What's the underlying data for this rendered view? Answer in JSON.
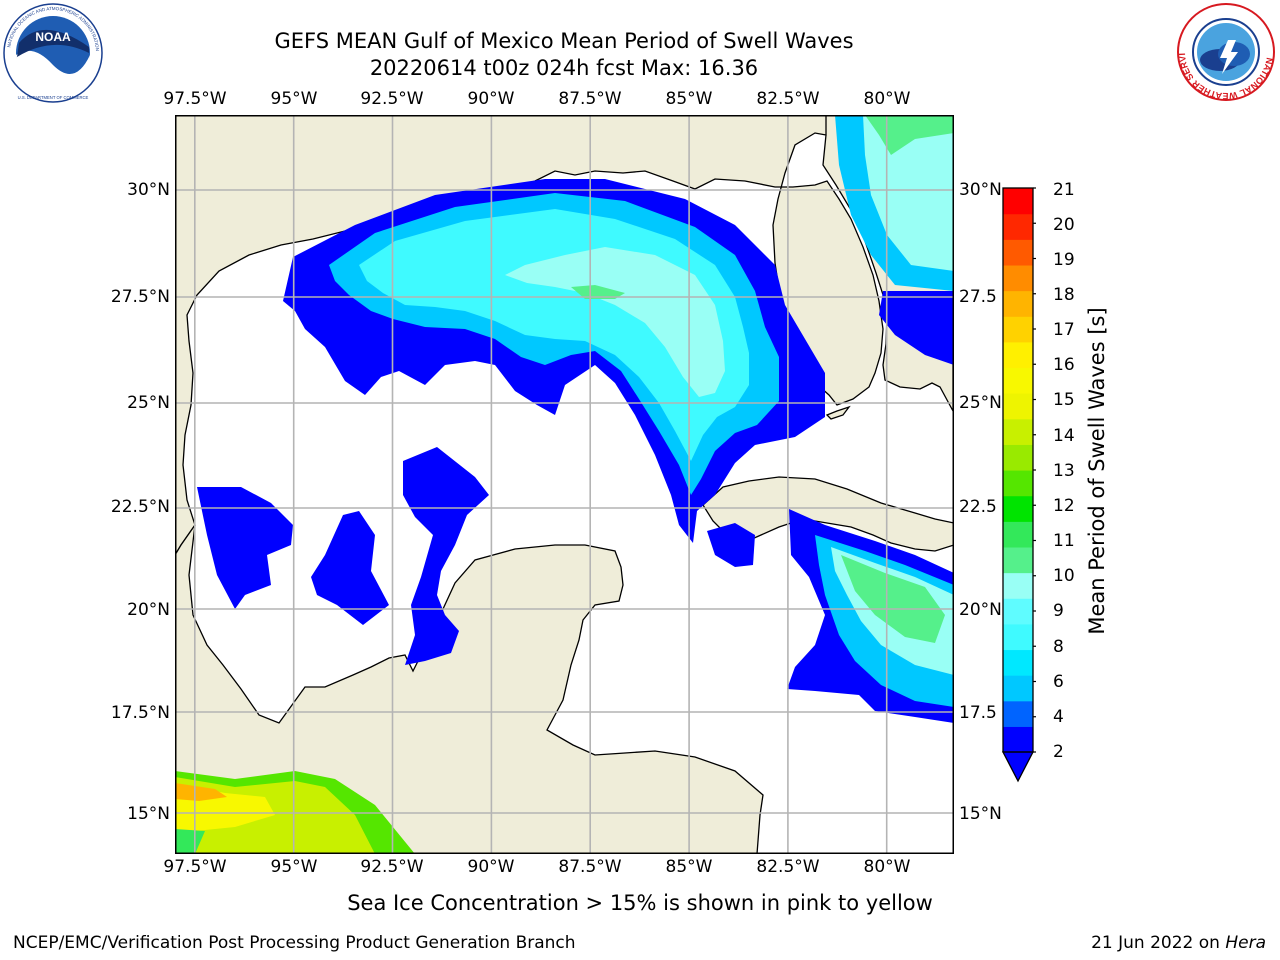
{
  "header": {
    "title_line1": "GEFS MEAN Gulf of Mexico Mean Period of Swell Waves",
    "title_line2": "20220614 t00z 024h fcst   Max: 16.36"
  },
  "logos": {
    "left": {
      "icon": "noaa-logo-icon",
      "ring_text": "NATIONAL OCEANIC AND ATMOSPHERIC ADMINISTRATION",
      "bottom_text": "U.S. DEPARTMENT OF COMMERCE",
      "center_text": "NOAA"
    },
    "right": {
      "icon": "nws-logo-icon",
      "ring_text": "NATIONAL WEATHER SERVICE"
    }
  },
  "map": {
    "lon_ticks": [
      "97.5°W",
      "95°W",
      "92.5°W",
      "90°W",
      "87.5°W",
      "85°W",
      "82.5°W",
      "80°W"
    ],
    "lat_ticks_left": [
      "30°N",
      "27.5°N",
      "25°N",
      "22.5°N",
      "20°N",
      "17.5°N",
      "15°N"
    ],
    "lat_ticks_right": [
      "30°N",
      "27.5",
      "25°N",
      "22.5",
      "20°N",
      "17.5",
      "15°N"
    ],
    "lon_range": [
      -98,
      -78.3
    ],
    "lat_range": [
      14,
      31.5
    ],
    "colors": {
      "land": "#efedd9",
      "ocean": "#ffffff",
      "grid": "#b4b4b4",
      "coast": "#000000"
    }
  },
  "colorbar": {
    "label": "Mean Period of Swell Waves [s]",
    "ticks": [
      "21",
      "20",
      "19",
      "18",
      "17",
      "16",
      "15",
      "14",
      "13",
      "12",
      "11",
      "10",
      "9",
      "8",
      "6",
      "4",
      "2"
    ],
    "colors": [
      "#0000ff",
      "#0064ff",
      "#00c8ff",
      "#00e8ff",
      "#3ffaff",
      "#5ffcff",
      "#99fff5",
      "#55f08b",
      "#33e85a",
      "#00e400",
      "#55e600",
      "#99ea00",
      "#c8f000",
      "#eef400",
      "#f8f800",
      "#fff000",
      "#ffd200",
      "#ffb400",
      "#ff8c00",
      "#ff5a00",
      "#ff2800",
      "#ff0000"
    ]
  },
  "annotation": "Sea Ice Concentration > 15% is shown in pink to yellow",
  "footer": {
    "left": "NCEP/EMC/Verification Post Processing Product Generation Branch",
    "right_prefix": "21 Jun 2022 on ",
    "right_host": "Hera"
  }
}
